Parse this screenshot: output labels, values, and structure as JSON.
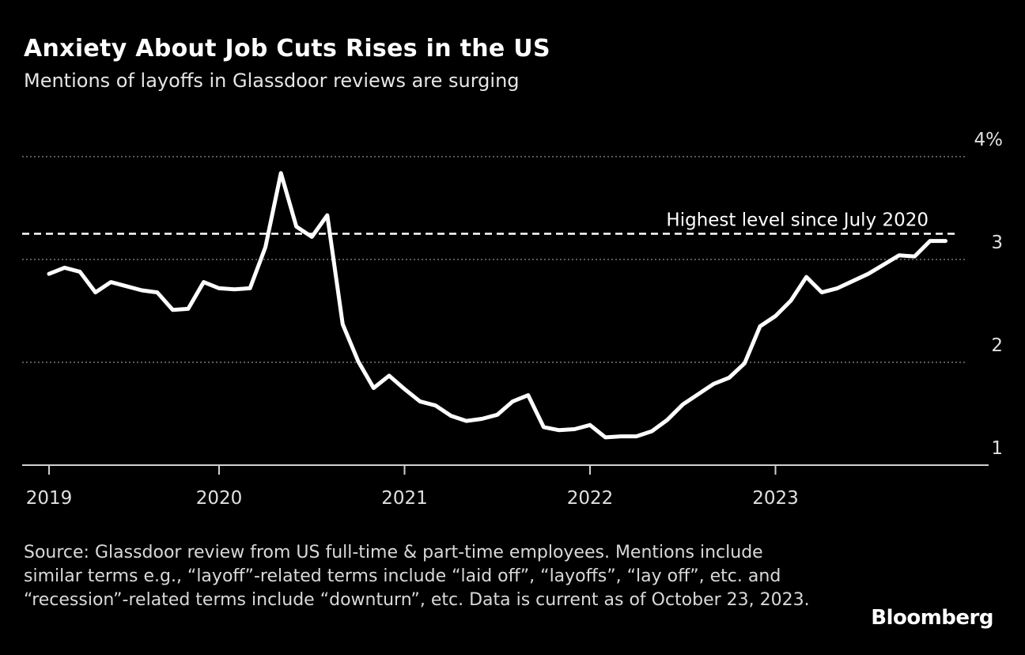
{
  "title": "Anxiety About Job Cuts Rises in the US",
  "subtitle": "Mentions of layoffs in Glassdoor reviews are surging",
  "source": "Source: Glassdoor review from US full-time & part-time employees. Mentions include similar terms e.g., “layoff”-related terms include “laid off”, “layoffs”, “lay off”, etc. and “recession”-related terms include “downturn”, etc. Data is current as of October 23, 2023.",
  "logo": "Bloomberg",
  "colors": {
    "background": "#000000",
    "line": "#ffffff",
    "grid": "#777777"
  },
  "chart_data": {
    "type": "line",
    "title": "Anxiety About Job Cuts Rises in the US",
    "subtitle": "Mentions of layoffs in Glassdoor reviews are surging",
    "xlabel": "",
    "ylabel": "",
    "ylim": [
      1,
      4
    ],
    "y_ticks": [
      1,
      2,
      3,
      4
    ],
    "y_tick_labels": [
      "1",
      "2",
      "3",
      "4%"
    ],
    "x_tick_labels": [
      "2019",
      "2020",
      "2021",
      "2022",
      "2023"
    ],
    "grid": "horizontal dotted",
    "y_axis_side": "right",
    "annotation": {
      "label": "Highest level since July 2020",
      "y": 3.25,
      "style": "dashed"
    },
    "x": [
      "2019-01",
      "2019-02",
      "2019-03",
      "2019-04",
      "2019-05",
      "2019-06",
      "2019-07",
      "2019-08",
      "2019-09",
      "2019-10",
      "2019-11",
      "2019-12",
      "2020-01",
      "2020-02",
      "2020-03",
      "2020-04",
      "2020-05",
      "2020-06",
      "2020-07",
      "2020-08",
      "2020-09",
      "2020-10",
      "2020-11",
      "2020-12",
      "2021-01",
      "2021-02",
      "2021-03",
      "2021-04",
      "2021-05",
      "2021-06",
      "2021-07",
      "2021-08",
      "2021-09",
      "2021-10",
      "2021-11",
      "2021-12",
      "2022-01",
      "2022-02",
      "2022-03",
      "2022-04",
      "2022-05",
      "2022-06",
      "2022-07",
      "2022-08",
      "2022-09",
      "2022-10",
      "2022-11",
      "2022-12",
      "2023-01",
      "2023-02",
      "2023-03",
      "2023-04",
      "2023-05",
      "2023-06",
      "2023-07",
      "2023-08",
      "2023-09",
      "2023-10",
      "2023-11"
    ],
    "values": [
      2.86,
      2.92,
      2.88,
      2.68,
      2.78,
      2.74,
      2.7,
      2.68,
      2.51,
      2.52,
      2.78,
      2.72,
      2.71,
      2.72,
      3.12,
      3.84,
      3.32,
      3.22,
      3.43,
      2.37,
      2.01,
      1.75,
      1.87,
      1.74,
      1.62,
      1.58,
      1.48,
      1.43,
      1.45,
      1.49,
      1.62,
      1.68,
      1.37,
      1.34,
      1.35,
      1.39,
      1.27,
      1.28,
      1.28,
      1.33,
      1.44,
      1.59,
      1.69,
      1.79,
      1.85,
      1.99,
      2.35,
      2.45,
      2.6,
      2.83,
      2.68,
      2.72,
      2.79,
      2.86,
      2.95,
      3.04,
      3.03,
      3.18,
      3.18
    ]
  }
}
